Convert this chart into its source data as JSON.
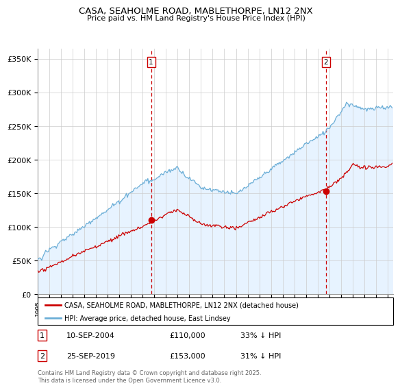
{
  "title": "CASA, SEAHOLME ROAD, MABLETHORPE, LN12 2NX",
  "subtitle": "Price paid vs. HM Land Registry's House Price Index (HPI)",
  "ylabel_ticks": [
    "£0",
    "£50K",
    "£100K",
    "£150K",
    "£200K",
    "£250K",
    "£300K",
    "£350K"
  ],
  "ytick_values": [
    0,
    50000,
    100000,
    150000,
    200000,
    250000,
    300000,
    350000
  ],
  "ylim": [
    0,
    365000
  ],
  "xlim_start": 1995.0,
  "xlim_end": 2025.5,
  "hpi_color": "#6baed6",
  "hpi_fill_color": "#ddeeff",
  "price_color": "#cc0000",
  "dashed_color": "#cc0000",
  "marker1_x": 2004.72,
  "marker2_x": 2019.73,
  "marker1_y": 110000,
  "marker2_y": 153000,
  "legend_line1": "CASA, SEAHOLME ROAD, MABLETHORPE, LN12 2NX (detached house)",
  "legend_line2": "HPI: Average price, detached house, East Lindsey",
  "table_row1": [
    "1",
    "10-SEP-2004",
    "£110,000",
    "33% ↓ HPI"
  ],
  "table_row2": [
    "2",
    "25-SEP-2019",
    "£153,000",
    "31% ↓ HPI"
  ],
  "footer": "Contains HM Land Registry data © Crown copyright and database right 2025.\nThis data is licensed under the Open Government Licence v3.0.",
  "background_color": "#ffffff",
  "grid_color": "#cccccc"
}
